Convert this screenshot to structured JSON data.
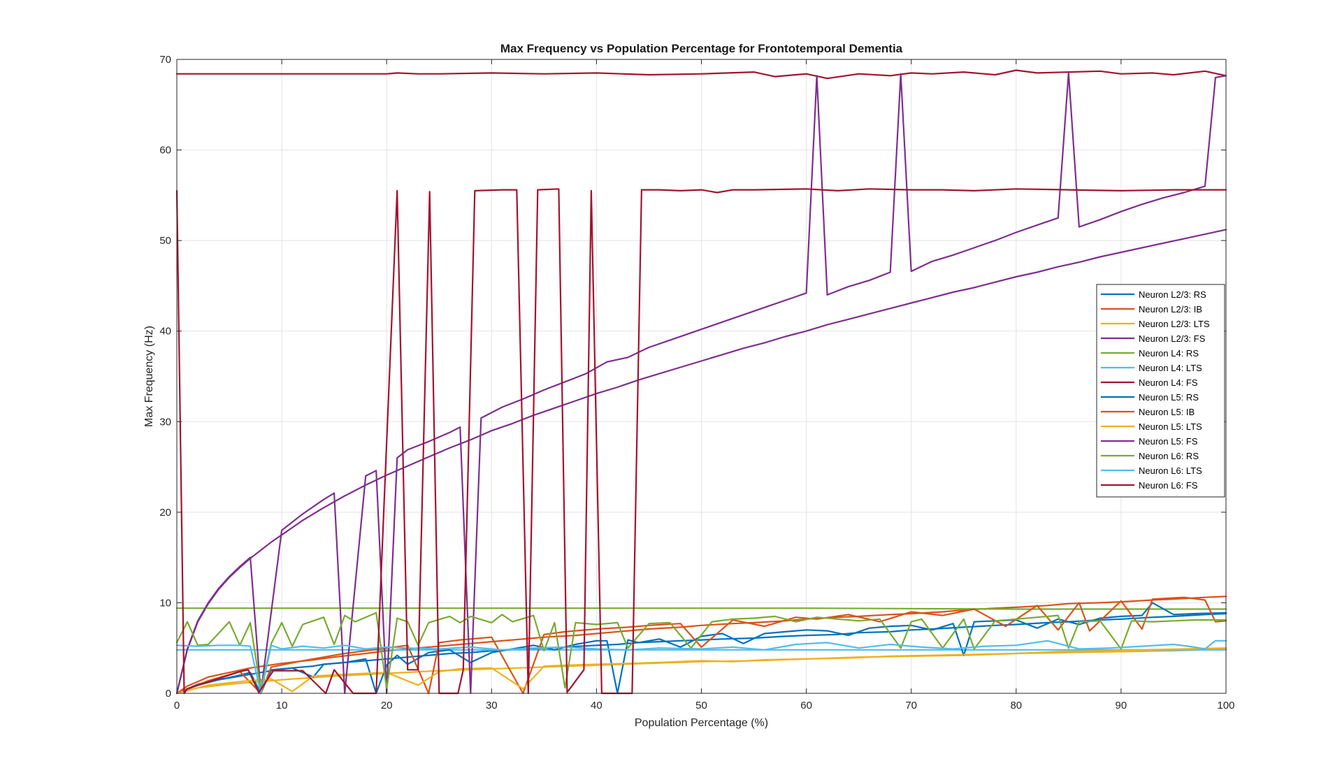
{
  "chart_data": {
    "type": "line",
    "title": "Max Frequency vs Population Percentage for Frontotemporal Dementia",
    "xlabel": "Population Percentage (%)",
    "ylabel": "Max Frequency (Hz)",
    "xlim": [
      0,
      100
    ],
    "ylim": [
      0,
      70
    ],
    "xticks": [
      0,
      10,
      20,
      30,
      40,
      50,
      60,
      70,
      80,
      90,
      100
    ],
    "yticks": [
      0,
      10,
      20,
      30,
      40,
      50,
      60,
      70
    ],
    "grid": true,
    "legend_position": "right",
    "series": [
      {
        "name": "Neuron L2/3: RS",
        "color": "#0072BD",
        "x": [
          0,
          1,
          2,
          3,
          5,
          7,
          8,
          9,
          11,
          13,
          14,
          16,
          18,
          20,
          22,
          24,
          26,
          28,
          30,
          33,
          35,
          37,
          40,
          42,
          44,
          46,
          48,
          50,
          52,
          55,
          58,
          60,
          63,
          65,
          68,
          70,
          72,
          75,
          78,
          80,
          83,
          85,
          88,
          90,
          93,
          95,
          98,
          100
        ],
        "y": [
          0,
          0.5,
          1.0,
          1.3,
          1.7,
          2.1,
          2.3,
          2.5,
          2.8,
          3.0,
          3.2,
          3.4,
          3.6,
          3.8,
          4.0,
          4.2,
          4.4,
          4.5,
          4.7,
          4.9,
          5.0,
          5.1,
          5.3,
          5.4,
          5.6,
          5.7,
          5.8,
          5.9,
          6.0,
          6.1,
          6.3,
          6.4,
          6.5,
          6.7,
          6.8,
          7.0,
          7.1,
          7.3,
          7.5,
          7.6,
          7.8,
          7.9,
          8.1,
          8.2,
          8.4,
          8.5,
          8.7,
          8.8
        ]
      },
      {
        "name": "Neuron L2/3: IB",
        "color": "#D95319",
        "x": [
          0,
          1,
          2,
          3,
          5,
          7,
          10,
          13,
          15,
          18,
          20,
          23,
          25,
          28,
          30,
          33,
          35,
          38,
          40,
          43,
          45,
          48,
          50,
          53,
          55,
          58,
          60,
          63,
          65,
          68,
          70,
          73,
          75,
          78,
          80,
          83,
          85,
          88,
          90,
          93,
          95,
          98,
          100
        ],
        "y": [
          0,
          0.8,
          1.3,
          1.8,
          2.3,
          2.8,
          3.3,
          3.7,
          4.0,
          4.4,
          4.7,
          5.0,
          5.2,
          5.5,
          5.7,
          6.0,
          6.2,
          6.4,
          6.6,
          6.9,
          7.1,
          7.3,
          7.5,
          7.7,
          7.8,
          8.0,
          8.2,
          8.4,
          8.5,
          8.7,
          8.8,
          9.0,
          9.2,
          9.4,
          9.5,
          9.7,
          9.9,
          10.0,
          10.1,
          10.3,
          10.4,
          10.6,
          10.7
        ]
      },
      {
        "name": "Neuron L2/3: LTS",
        "color": "#EDB120",
        "x": [
          0,
          2,
          5,
          8,
          10,
          15,
          20,
          25,
          30,
          35,
          40,
          45,
          50,
          55,
          60,
          65,
          70,
          75,
          80,
          85,
          90,
          95,
          100
        ],
        "y": [
          0,
          0.6,
          1.0,
          1.3,
          1.5,
          1.9,
          2.2,
          2.5,
          2.7,
          2.9,
          3.1,
          3.3,
          3.5,
          3.6,
          3.8,
          4.0,
          4.1,
          4.2,
          4.4,
          4.5,
          4.6,
          4.7,
          4.9
        ]
      },
      {
        "name": "Neuron L2/3: FS",
        "color": "#7E2F8E",
        "x": [
          0,
          1,
          2,
          3,
          4,
          5,
          6,
          7,
          8,
          9,
          10,
          12,
          14,
          16,
          18,
          20,
          22,
          24,
          26,
          28,
          30,
          32,
          34,
          36,
          38,
          40,
          42,
          44,
          46,
          48,
          50,
          52,
          54,
          56,
          58,
          60,
          62,
          64,
          66,
          68,
          70,
          72,
          74,
          76,
          78,
          80,
          82,
          84,
          86,
          88,
          90,
          92,
          94,
          96,
          98,
          100
        ],
        "y": [
          0,
          4.8,
          7.9,
          9.9,
          11.5,
          12.8,
          13.9,
          14.9,
          15.8,
          16.7,
          17.5,
          19.1,
          20.5,
          21.8,
          23.0,
          24.1,
          25.1,
          26.1,
          27.1,
          28.0,
          29.0,
          29.8,
          30.7,
          31.5,
          32.3,
          33.1,
          33.8,
          34.6,
          35.3,
          36.0,
          36.7,
          37.4,
          38.1,
          38.7,
          39.4,
          40.0,
          40.7,
          41.3,
          41.9,
          42.5,
          43.1,
          43.7,
          44.3,
          44.8,
          45.4,
          46.0,
          46.5,
          47.1,
          47.6,
          48.2,
          48.7,
          49.2,
          49.7,
          50.2,
          50.7,
          51.2
        ]
      },
      {
        "name": "Neuron L4: RS",
        "color": "#77AC30",
        "x": [
          0,
          20,
          40,
          60,
          80,
          100
        ],
        "y": [
          9.4,
          9.4,
          9.4,
          9.4,
          9.3,
          9.3
        ]
      },
      {
        "name": "Neuron L4: LTS",
        "color": "#4DBEEE",
        "x": [
          0,
          20,
          40,
          60,
          80,
          100
        ],
        "y": [
          4.8,
          4.8,
          4.8,
          4.8,
          4.8,
          4.8
        ]
      },
      {
        "name": "Neuron L4: FS",
        "color": "#A2142F",
        "x": [
          0,
          20,
          21,
          23,
          25,
          30,
          35,
          40,
          45,
          50,
          55,
          57,
          60,
          62,
          65,
          68,
          70,
          72,
          75,
          78,
          80,
          82,
          85,
          88,
          90,
          93,
          95,
          98,
          100
        ],
        "y": [
          68.4,
          68.4,
          68.5,
          68.4,
          68.4,
          68.5,
          68.4,
          68.5,
          68.3,
          68.4,
          68.6,
          68.1,
          68.4,
          67.9,
          68.4,
          68.2,
          68.5,
          68.4,
          68.6,
          68.3,
          68.8,
          68.5,
          68.6,
          68.7,
          68.4,
          68.5,
          68.3,
          68.7,
          68.2
        ]
      },
      {
        "name": "Neuron L5: RS",
        "color": "#0072BD",
        "x": [
          0,
          2,
          4,
          6,
          7,
          8,
          9,
          11,
          13,
          14,
          16,
          18,
          19,
          20,
          21,
          22,
          24,
          26,
          28,
          30,
          32,
          34,
          36,
          38,
          40,
          41,
          42,
          43,
          44,
          46,
          48,
          50,
          52,
          54,
          56,
          58,
          60,
          62,
          64,
          66,
          68,
          70,
          72,
          74,
          75,
          76,
          78,
          80,
          82,
          84,
          86,
          88,
          90,
          92,
          93,
          95,
          97,
          100
        ],
        "y": [
          0,
          0.9,
          1.5,
          2.0,
          2.3,
          0,
          2.6,
          2.8,
          1.8,
          3.2,
          3.4,
          3.8,
          0,
          3.1,
          4.2,
          3.2,
          4.5,
          4.8,
          3.4,
          4.5,
          4.9,
          5.3,
          4.8,
          5.4,
          5.8,
          5.8,
          0,
          5.9,
          5.6,
          6.0,
          5.1,
          6.3,
          6.6,
          5.5,
          6.6,
          6.8,
          7.0,
          6.9,
          6.4,
          7.2,
          7.4,
          7.5,
          7.0,
          7.7,
          4.2,
          7.9,
          8.0,
          8.1,
          7.2,
          8.2,
          7.6,
          8.3,
          8.5,
          8.6,
          10.0,
          8.7,
          8.8,
          8.9
        ]
      },
      {
        "name": "Neuron L5: IB",
        "color": "#D95319",
        "x": [
          0,
          3,
          6,
          8,
          9,
          12,
          14,
          16,
          18,
          20,
          22,
          24,
          25,
          27,
          30,
          33,
          35,
          37,
          40,
          43,
          45,
          48,
          50,
          53,
          56,
          59,
          61,
          64,
          67,
          70,
          73,
          76,
          79,
          82,
          84,
          86,
          87,
          90,
          92,
          93,
          96,
          98,
          99,
          100
        ],
        "y": [
          0,
          1.4,
          2.4,
          0,
          2.9,
          3.6,
          4.0,
          4.4,
          4.7,
          5.0,
          5.3,
          0,
          5.6,
          5.9,
          6.2,
          0,
          6.5,
          6.8,
          7.1,
          7.3,
          7.5,
          7.7,
          5.1,
          8.1,
          7.4,
          8.4,
          8.2,
          8.7,
          7.9,
          9.0,
          8.6,
          9.3,
          7.4,
          9.7,
          7.0,
          10.0,
          6.9,
          10.2,
          7.1,
          10.4,
          10.6,
          10.3,
          7.9,
          8.0
        ]
      },
      {
        "name": "Neuron L5: LTS",
        "color": "#EDB120",
        "x": [
          0,
          3,
          6,
          9,
          11,
          13,
          16,
          20,
          23,
          25,
          27,
          30,
          33,
          35,
          37,
          40,
          43,
          46,
          50,
          53,
          56,
          60,
          64,
          68,
          72,
          76,
          80,
          84,
          88,
          92,
          96,
          100
        ],
        "y": [
          0,
          0.9,
          1.3,
          1.6,
          0.2,
          1.9,
          2.1,
          2.3,
          0.9,
          2.4,
          2.7,
          2.8,
          0.5,
          3.0,
          3.1,
          3.2,
          3.3,
          3.4,
          3.6,
          3.5,
          3.7,
          3.8,
          3.9,
          4.1,
          4.2,
          4.3,
          4.4,
          4.6,
          4.7,
          4.8,
          4.9,
          5.0
        ]
      },
      {
        "name": "Neuron L5: FS",
        "color": "#7E2F8E",
        "x": [
          0,
          1,
          2,
          3,
          4,
          5,
          6,
          7,
          8,
          10,
          12,
          14,
          15,
          16,
          18,
          19,
          20,
          21,
          22,
          24,
          26,
          27,
          28,
          29,
          31,
          33,
          35,
          37,
          39,
          41,
          43,
          45,
          47,
          49,
          51,
          53,
          55,
          57,
          59,
          60,
          61,
          62,
          64,
          66,
          68,
          69,
          70,
          72,
          74,
          76,
          78,
          80,
          82,
          84,
          85,
          86,
          88,
          90,
          92,
          94,
          96,
          98,
          99,
          100
        ],
        "y": [
          0,
          4.9,
          8.0,
          10.0,
          11.6,
          12.9,
          14.0,
          15.0,
          0,
          18.0,
          19.8,
          21.4,
          22.1,
          0,
          24.0,
          24.6,
          0,
          26.0,
          26.9,
          27.8,
          28.8,
          29.4,
          0,
          30.4,
          31.6,
          32.5,
          33.5,
          34.4,
          35.3,
          36.6,
          37.1,
          38.2,
          39.0,
          39.8,
          40.6,
          41.4,
          42.2,
          43.0,
          43.8,
          44.2,
          68.2,
          44.0,
          44.9,
          45.6,
          46.5,
          68.4,
          46.6,
          47.7,
          48.4,
          49.2,
          50.0,
          50.9,
          51.7,
          52.5,
          68.5,
          51.5,
          52.3,
          53.2,
          54.0,
          54.7,
          55.3,
          56.0,
          68.0,
          68.2
        ]
      },
      {
        "name": "Neuron L6: RS",
        "color": "#77AC30",
        "x": [
          0,
          1,
          2,
          3,
          5,
          6,
          7,
          8,
          9,
          10,
          11,
          12,
          14,
          15,
          16,
          17,
          18,
          19,
          20,
          21,
          22,
          23,
          24,
          26,
          27,
          28,
          30,
          31,
          32,
          34,
          35,
          36,
          37,
          38,
          40,
          42,
          43,
          45,
          47,
          49,
          51,
          53,
          55,
          57,
          59,
          61,
          63,
          65,
          67,
          69,
          70,
          71,
          73,
          75,
          76,
          78,
          80,
          82,
          84,
          85,
          86,
          88,
          90,
          91,
          93,
          95,
          97,
          100
        ],
        "y": [
          5.6,
          7.9,
          5.3,
          5.4,
          7.9,
          5.3,
          7.8,
          0.4,
          5.5,
          7.8,
          5.2,
          7.6,
          8.4,
          5.4,
          8.6,
          7.9,
          8.4,
          8.9,
          0.5,
          8.3,
          7.9,
          5.3,
          7.8,
          8.5,
          7.8,
          8.5,
          7.8,
          8.7,
          7.9,
          8.6,
          4.7,
          7.8,
          0.6,
          7.8,
          7.6,
          7.8,
          5.0,
          7.7,
          7.8,
          5.0,
          7.9,
          8.2,
          8.3,
          8.5,
          7.9,
          8.4,
          8.2,
          8.0,
          8.2,
          5.0,
          7.9,
          8.2,
          5.0,
          8.2,
          4.9,
          8.0,
          8.2,
          8.4,
          8.6,
          5.0,
          7.9,
          8.0,
          4.9,
          8.0,
          7.9,
          8.0,
          8.1,
          8.1
        ]
      },
      {
        "name": "Neuron L6: LTS",
        "color": "#4DBEEE",
        "x": [
          0,
          2,
          4,
          6,
          7,
          8,
          9,
          10,
          12,
          14,
          16,
          18,
          20,
          22,
          25,
          28,
          31,
          34,
          37,
          40,
          43,
          46,
          50,
          53,
          56,
          59,
          62,
          65,
          68,
          71,
          74,
          77,
          80,
          83,
          86,
          89,
          92,
          95,
          97,
          98,
          99,
          100
        ],
        "y": [
          5.3,
          5.2,
          5.3,
          5.3,
          5.2,
          0,
          5.3,
          4.9,
          5.2,
          5.0,
          5.3,
          4.9,
          5.1,
          5.0,
          4.9,
          5.1,
          4.8,
          5.0,
          5.1,
          4.9,
          4.8,
          5.0,
          4.9,
          5.1,
          4.8,
          5.4,
          5.6,
          5.0,
          5.4,
          5.1,
          4.9,
          5.2,
          5.3,
          5.8,
          4.9,
          5.0,
          5.2,
          5.4,
          5.1,
          4.9,
          5.8,
          5.8
        ]
      },
      {
        "name": "Neuron L6: FS",
        "color": "#A2142F",
        "x": [
          0,
          0.7,
          1.0,
          6.0,
          6.8,
          7.8,
          9.2,
          12.0,
          14.2,
          15.0,
          16.8,
          19.0,
          21.0,
          22.0,
          23.0,
          24.1,
          25.0,
          26.8,
          27.3,
          28.4,
          31.0,
          32.4,
          33.5,
          34.4,
          36.4,
          37.2,
          38.8,
          39.5,
          40.5,
          42.0,
          43.4,
          44.3,
          46.0,
          48.0,
          50.0,
          51.5,
          53.0,
          55.0,
          60.0,
          63.0,
          66.0,
          70.0,
          73.0,
          76.0,
          80.0,
          85.0,
          90.0,
          95.0,
          100.0
        ],
        "y": [
          55.5,
          0,
          0.5,
          2.4,
          2.6,
          0.1,
          2.5,
          2.5,
          0,
          2.6,
          0,
          0,
          55.5,
          2.6,
          2.6,
          55.4,
          0,
          0,
          2.6,
          55.5,
          55.6,
          55.6,
          0,
          55.6,
          55.7,
          0.1,
          2.6,
          55.5,
          0,
          0,
          0,
          55.6,
          55.6,
          55.5,
          55.6,
          55.3,
          55.6,
          55.6,
          55.7,
          55.5,
          55.7,
          55.6,
          55.6,
          55.5,
          55.7,
          55.6,
          55.5,
          55.6,
          55.6
        ]
      }
    ]
  }
}
